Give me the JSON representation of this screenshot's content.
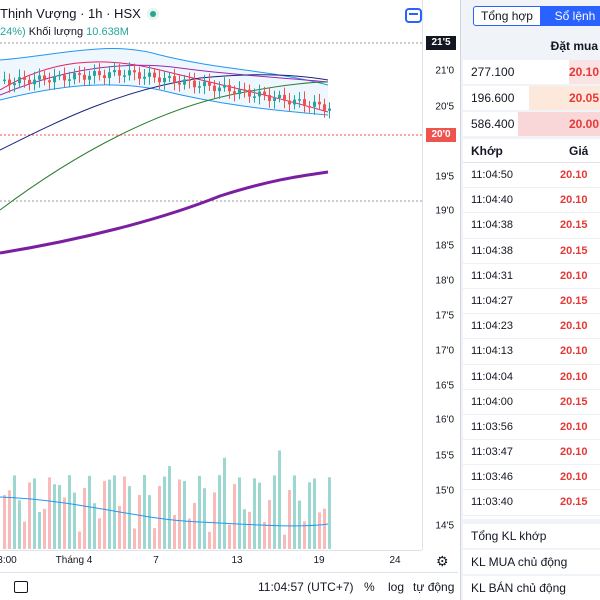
{
  "legend": {
    "symbol_text": "Thịnh Vượng · 1h · HSX",
    "change_pct": "24%)",
    "volume_label": "Khối lượng",
    "volume_value": "10.638M"
  },
  "colors": {
    "up": "#26a69a",
    "down": "#ef5350",
    "accent": "#2962ff",
    "ma_purple": "#7b1fa2",
    "bid_price": "#e53935"
  },
  "price_axis": {
    "ticks": [
      "21'0",
      "20'5",
      "19'5",
      "19'0",
      "18'5",
      "18'0",
      "17'5",
      "17'0",
      "16'5",
      "16'0",
      "15'5",
      "15'0",
      "14'5"
    ],
    "high_tag": "21'5",
    "last_tag": "20'0"
  },
  "time_axis": {
    "ticks": [
      "3:00",
      "Tháng 4",
      "7",
      "13",
      "19",
      "24"
    ]
  },
  "bottom_bar": {
    "clock": "11:04:57 (UTC+7)",
    "percent": "%",
    "log": "log",
    "auto": "tự động"
  },
  "side_panel": {
    "tabs": [
      "Tổng hợp",
      "Sổ lệnh"
    ],
    "active_tab": "Sổ lệnh",
    "bid_header": "Đặt mua",
    "bids": [
      {
        "qty": "277.100",
        "price": "20.10",
        "fill": 0.23
      },
      {
        "qty": "196.600",
        "price": "20.05",
        "fill": 0.52
      },
      {
        "qty": "586.400",
        "price": "20.00",
        "fill": 0.6
      }
    ],
    "trade_headers": [
      "Khớp",
      "Giá"
    ],
    "trades": [
      {
        "time": "11:04:50",
        "price": "20.10"
      },
      {
        "time": "11:04:40",
        "price": "20.10"
      },
      {
        "time": "11:04:38",
        "price": "20.15"
      },
      {
        "time": "11:04:38",
        "price": "20.15"
      },
      {
        "time": "11:04:31",
        "price": "20.10"
      },
      {
        "time": "11:04:27",
        "price": "20.15"
      },
      {
        "time": "11:04:23",
        "price": "20.10"
      },
      {
        "time": "11:04:13",
        "price": "20.10"
      },
      {
        "time": "11:04:04",
        "price": "20.10"
      },
      {
        "time": "11:04:00",
        "price": "20.15"
      },
      {
        "time": "11:03:56",
        "price": "20.10"
      },
      {
        "time": "11:03:47",
        "price": "20.10"
      },
      {
        "time": "11:03:46",
        "price": "20.10"
      },
      {
        "time": "11:03:40",
        "price": "20.15"
      }
    ],
    "summaries": [
      "Tổng KL khớp",
      "KL MUA chủ động",
      "KL BÁN chủ động"
    ]
  }
}
